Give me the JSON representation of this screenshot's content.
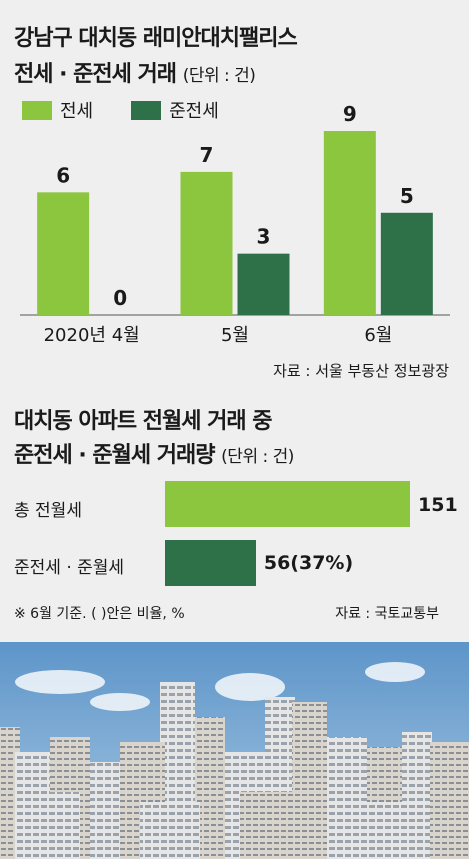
{
  "chart1": {
    "title_line1": "강남구 대치동 래미안대치팰리스",
    "title_line2": "전세 · 준전세 거래",
    "unit": "(단위 : 건)",
    "source": "자료 : 서울 부동산 정보광장",
    "colors": {
      "jeonse": "#8cc63f",
      "junjeonse": "#2e7048"
    }
  },
  "chart2": {
    "title_line1": "대치동 아파트 전월세 거래 중",
    "title_line2": "준전세 · 준월세 거래량",
    "unit": "(단위 : 건)",
    "note": "※ 6월 기준. ( )안은 비율, %",
    "source": "자료 : 국토교통부",
    "rows": [
      {
        "label": "총 전월세",
        "value_label": "151"
      },
      {
        "label": "준전세 · 준월세",
        "value_label": "56(37%)"
      }
    ]
  },
  "chart_data": [
    {
      "type": "bar",
      "title": "강남구 대치동 래미안대치팰리스 전세 · 준전세 거래",
      "unit": "(단위 : 건)",
      "categories": [
        "2020년 4월",
        "5월",
        "6월"
      ],
      "series": [
        {
          "name": "전세",
          "values": [
            6,
            7,
            9
          ],
          "color": "#8cc63f"
        },
        {
          "name": "준전세",
          "values": [
            0,
            3,
            5
          ],
          "color": "#2e7048"
        }
      ],
      "ylim": [
        0,
        9
      ],
      "legend": "top-left",
      "grid": false
    },
    {
      "type": "bar",
      "orientation": "horizontal",
      "title": "대치동 아파트 전월세 거래 중 준전세 · 준월세 거래량",
      "unit": "(단위 : 건)",
      "categories": [
        "총 전월세",
        "준전세 · 준월세"
      ],
      "values": [
        151,
        56
      ],
      "value_labels": [
        "151",
        "56(37%)"
      ],
      "percent_of_total": [
        null,
        37
      ],
      "colors": [
        "#8cc63f",
        "#2e7048"
      ],
      "xlim": [
        0,
        151
      ]
    }
  ]
}
